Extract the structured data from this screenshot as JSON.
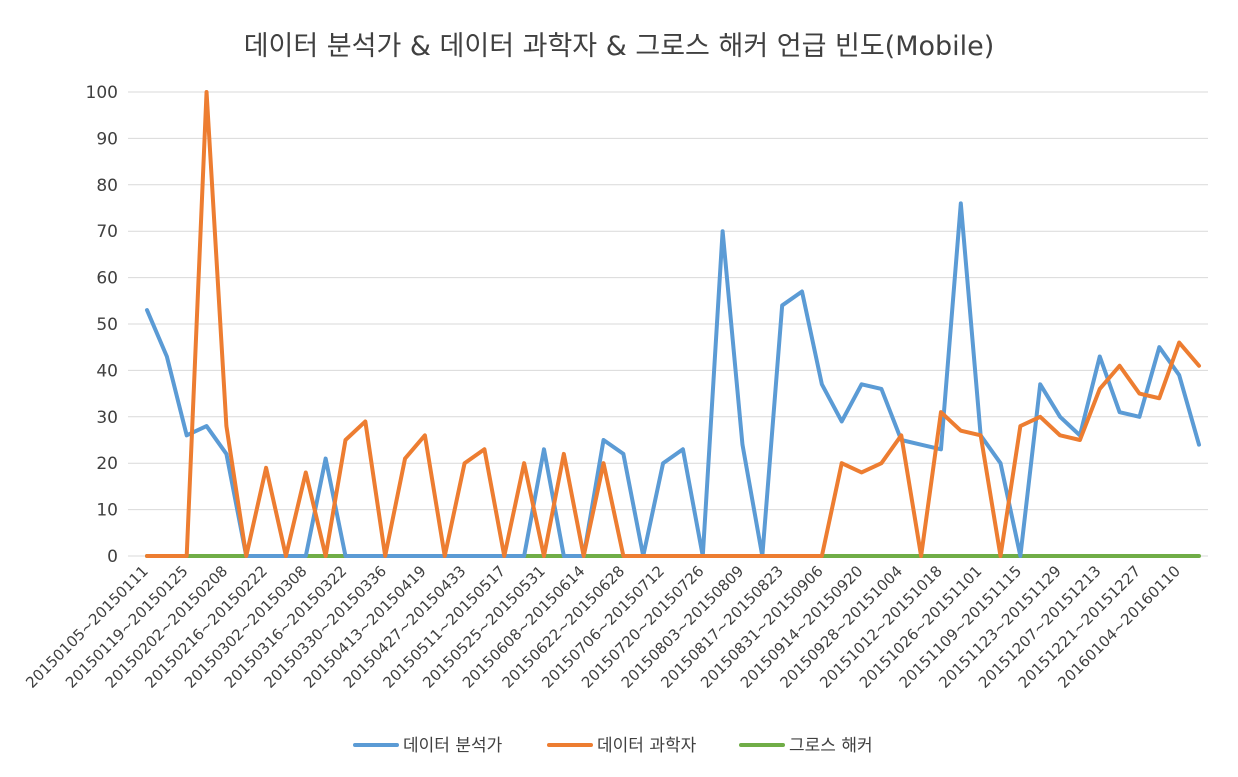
{
  "chart_data": {
    "type": "line",
    "title": "데이터 분석가 & 데이터 과학자 & 그로스 해커 언급 빈도(Mobile)",
    "xlabel": "",
    "ylabel": "",
    "ylim": [
      0,
      100
    ],
    "yticks": [
      0,
      10,
      20,
      30,
      40,
      50,
      60,
      70,
      80,
      90,
      100
    ],
    "grid": true,
    "legend_position": "bottom",
    "x_tick_labels": [
      "20150105~20150111",
      "20150119~20150125",
      "20150202~20150208",
      "20150216~20150222",
      "20150302~20150308",
      "20150316~20150322",
      "20150330~20150336",
      "20150413~20150419",
      "20150427~20150433",
      "20150511~20150517",
      "20150525~20150531",
      "20150608~20150614",
      "20150622~20150628",
      "20150706~20150712",
      "20150720~20150726",
      "20150803~20150809",
      "20150817~20150823",
      "20150831~20150906",
      "20150914~20150920",
      "20150928~20151004",
      "20151012~20151018",
      "20151026~20151101",
      "20151109~20151115",
      "20151123~20151129",
      "20151207~20151213",
      "20151221~20151227",
      "20160104~20160110"
    ],
    "series": [
      {
        "name": "데이터 분석가",
        "color": "#5B9BD5",
        "values": [
          53,
          43,
          26,
          28,
          22,
          0,
          0,
          0,
          0,
          21,
          0,
          0,
          0,
          0,
          0,
          0,
          0,
          0,
          0,
          0,
          23,
          0,
          0,
          25,
          22,
          0,
          20,
          23,
          0,
          70,
          24,
          0,
          54,
          57,
          37,
          29,
          37,
          36,
          25,
          24,
          23,
          76,
          26,
          20,
          0,
          37,
          30,
          26,
          43,
          31,
          30,
          45,
          39,
          24
        ]
      },
      {
        "name": "데이터 과학자",
        "color": "#ED7D31",
        "values": [
          0,
          0,
          0,
          100,
          28,
          0,
          19,
          0,
          18,
          0,
          25,
          29,
          0,
          21,
          26,
          0,
          20,
          23,
          0,
          20,
          0,
          22,
          0,
          20,
          0,
          0,
          0,
          0,
          0,
          0,
          0,
          0,
          0,
          0,
          0,
          20,
          18,
          20,
          26,
          0,
          31,
          27,
          26,
          0,
          28,
          30,
          26,
          25,
          36,
          41,
          35,
          34,
          46,
          41
        ]
      },
      {
        "name": "그로스 해커",
        "color": "#70AD47",
        "values": [
          0,
          0,
          0,
          0,
          0,
          0,
          0,
          0,
          0,
          0,
          0,
          0,
          0,
          0,
          0,
          0,
          0,
          0,
          0,
          0,
          0,
          0,
          0,
          0,
          0,
          0,
          0,
          0,
          0,
          0,
          0,
          0,
          0,
          0,
          0,
          0,
          0,
          0,
          0,
          0,
          0,
          0,
          0,
          0,
          0,
          0,
          0,
          0,
          0,
          0,
          0,
          0,
          0,
          0
        ]
      }
    ]
  }
}
